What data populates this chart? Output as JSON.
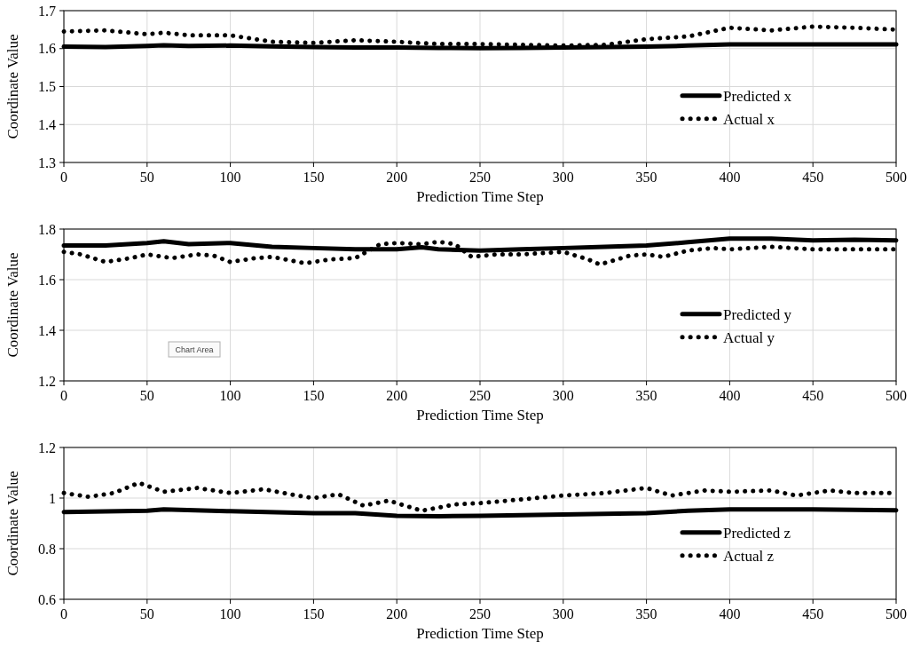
{
  "chart_data": [
    {
      "type": "line",
      "xlabel": "Prediction Time Step",
      "ylabel": "Coordinate Value",
      "xlim": [
        0,
        500
      ],
      "xticks": [
        0,
        50,
        100,
        150,
        200,
        250,
        300,
        350,
        400,
        450,
        500
      ],
      "ylim": [
        1.3,
        1.7
      ],
      "yticks": [
        1.3,
        1.4,
        1.5,
        1.6,
        1.7
      ],
      "grid": true,
      "legend": "right",
      "marker": "none",
      "series": [
        {
          "name": "Predicted x",
          "color": "#000000",
          "line_style": "solid",
          "x": [
            0,
            25,
            50,
            60,
            75,
            100,
            125,
            150,
            175,
            200,
            225,
            250,
            275,
            300,
            325,
            350,
            375,
            400,
            425,
            450,
            475,
            500
          ],
          "values": [
            1.605,
            1.604,
            1.607,
            1.609,
            1.607,
            1.608,
            1.606,
            1.604,
            1.603,
            1.603,
            1.602,
            1.601,
            1.602,
            1.603,
            1.604,
            1.605,
            1.608,
            1.611,
            1.611,
            1.611,
            1.611,
            1.611
          ]
        },
        {
          "name": "Actual x",
          "color": "#000000",
          "line_style": "dotted",
          "x": [
            0,
            25,
            50,
            60,
            75,
            100,
            125,
            150,
            175,
            200,
            225,
            250,
            275,
            300,
            325,
            350,
            375,
            400,
            425,
            450,
            475,
            500
          ],
          "values": [
            1.645,
            1.648,
            1.638,
            1.642,
            1.635,
            1.635,
            1.618,
            1.615,
            1.622,
            1.618,
            1.612,
            1.612,
            1.61,
            1.608,
            1.61,
            1.625,
            1.632,
            1.655,
            1.648,
            1.658,
            1.655,
            1.65
          ]
        }
      ]
    },
    {
      "type": "line",
      "xlabel": "Prediction Time Step",
      "ylabel": "Coordinate Value",
      "xlim": [
        0,
        500
      ],
      "xticks": [
        0,
        50,
        100,
        150,
        200,
        250,
        300,
        350,
        400,
        450,
        500
      ],
      "ylim": [
        1.2,
        1.8
      ],
      "yticks": [
        1.2,
        1.4,
        1.6,
        1.8
      ],
      "grid": true,
      "legend": "right",
      "marker": "none",
      "annotations": [
        "Chart Area"
      ],
      "series": [
        {
          "name": "Predicted y",
          "color": "#000000",
          "line_style": "solid",
          "x": [
            0,
            25,
            50,
            60,
            75,
            100,
            125,
            150,
            175,
            200,
            215,
            225,
            250,
            275,
            300,
            325,
            350,
            375,
            400,
            425,
            450,
            475,
            500
          ],
          "values": [
            1.735,
            1.735,
            1.745,
            1.752,
            1.74,
            1.745,
            1.73,
            1.725,
            1.72,
            1.72,
            1.728,
            1.72,
            1.715,
            1.72,
            1.725,
            1.73,
            1.735,
            1.748,
            1.762,
            1.762,
            1.755,
            1.758,
            1.755
          ]
        },
        {
          "name": "Actual y",
          "color": "#000000",
          "line_style": "dotted",
          "x": [
            0,
            10,
            25,
            40,
            50,
            65,
            80,
            90,
            100,
            115,
            125,
            145,
            160,
            175,
            190,
            200,
            215,
            225,
            235,
            245,
            260,
            275,
            300,
            315,
            322,
            340,
            350,
            360,
            375,
            390,
            400,
            425,
            450,
            475,
            500
          ],
          "values": [
            1.71,
            1.7,
            1.67,
            1.685,
            1.7,
            1.685,
            1.7,
            1.695,
            1.67,
            1.685,
            1.69,
            1.665,
            1.68,
            1.685,
            1.74,
            1.745,
            1.74,
            1.75,
            1.74,
            1.69,
            1.7,
            1.7,
            1.71,
            1.68,
            1.66,
            1.695,
            1.7,
            1.69,
            1.715,
            1.725,
            1.72,
            1.73,
            1.72,
            1.72,
            1.72
          ]
        }
      ]
    },
    {
      "type": "line",
      "xlabel": "Prediction Time Step",
      "ylabel": "Coordinate Value",
      "xlim": [
        0,
        500
      ],
      "xticks": [
        0,
        50,
        100,
        150,
        200,
        250,
        300,
        350,
        400,
        450,
        500
      ],
      "ylim": [
        0.6,
        1.2
      ],
      "yticks": [
        0.6,
        0.8,
        1,
        1.2
      ],
      "grid": true,
      "legend": "right",
      "marker": "none",
      "series": [
        {
          "name": "Predicted z",
          "color": "#000000",
          "line_style": "solid",
          "x": [
            0,
            50,
            60,
            100,
            150,
            175,
            200,
            225,
            250,
            300,
            350,
            375,
            400,
            450,
            500
          ],
          "values": [
            0.945,
            0.95,
            0.955,
            0.948,
            0.94,
            0.94,
            0.93,
            0.928,
            0.93,
            0.935,
            0.94,
            0.95,
            0.955,
            0.955,
            0.952
          ]
        },
        {
          "name": "Actual z",
          "color": "#000000",
          "line_style": "dotted",
          "x": [
            0,
            15,
            30,
            45,
            60,
            80,
            100,
            120,
            140,
            150,
            165,
            180,
            195,
            205,
            215,
            235,
            250,
            275,
            300,
            325,
            350,
            365,
            385,
            400,
            425,
            440,
            460,
            475,
            500
          ],
          "values": [
            1.02,
            1.005,
            1.02,
            1.06,
            1.025,
            1.04,
            1.02,
            1.035,
            1.01,
            1.0,
            1.015,
            0.97,
            0.99,
            0.97,
            0.95,
            0.975,
            0.98,
            0.995,
            1.01,
            1.02,
            1.04,
            1.01,
            1.03,
            1.025,
            1.03,
            1.01,
            1.03,
            1.02,
            1.02
          ]
        }
      ]
    }
  ]
}
